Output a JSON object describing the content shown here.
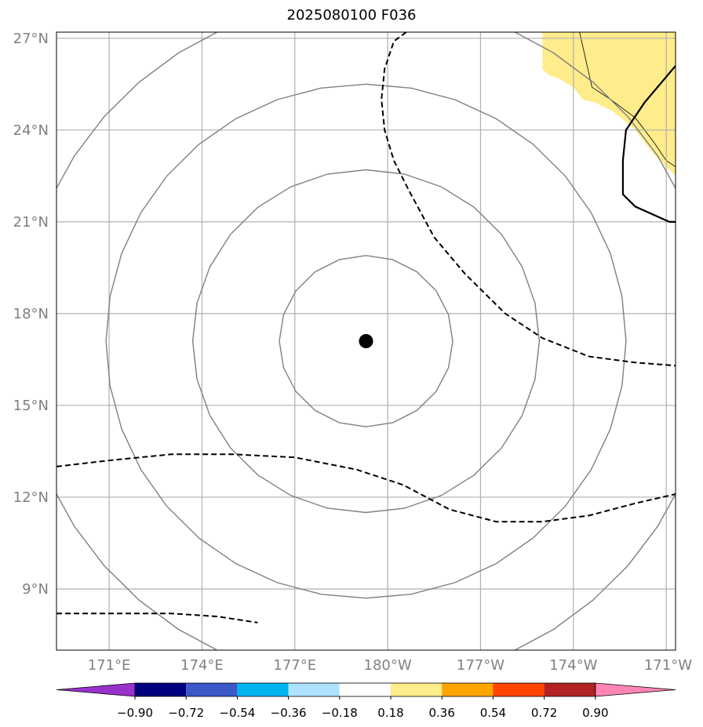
{
  "title": "2025080100 F036",
  "map": {
    "lat_range": [
      7,
      27.2
    ],
    "lon_range_east": [
      169.3,
      189.3
    ],
    "lat_ticks": [
      {
        "value": 27,
        "label": "27°N"
      },
      {
        "value": 24,
        "label": "24°N"
      },
      {
        "value": 21,
        "label": "21°N"
      },
      {
        "value": 18,
        "label": "18°N"
      },
      {
        "value": 15,
        "label": "15°N"
      },
      {
        "value": 12,
        "label": "12°N"
      },
      {
        "value": 9,
        "label": "9°N"
      }
    ],
    "lon_ticks": [
      {
        "value": 171,
        "label": "171°E"
      },
      {
        "value": 174,
        "label": "174°E"
      },
      {
        "value": 177,
        "label": "177°E"
      },
      {
        "value": 180,
        "label": "180°W"
      },
      {
        "value": 183,
        "label": "177°W"
      },
      {
        "value": 186,
        "label": "174°W"
      },
      {
        "value": 189,
        "label": "171°W"
      }
    ],
    "center": {
      "lon": 179.3,
      "lat": 17.1
    },
    "pressure_rings_approx_radius_deg": [
      2.8,
      5.6,
      8.4,
      11.2
    ],
    "dashed_contours": [
      [
        [
          180.6,
          27.2
        ],
        [
          180.2,
          26.9
        ],
        [
          179.9,
          26.0
        ],
        [
          179.8,
          25.0
        ],
        [
          179.9,
          24.0
        ],
        [
          180.2,
          23.0
        ],
        [
          180.7,
          22.0
        ],
        [
          181.5,
          20.5
        ],
        [
          182.5,
          19.3
        ],
        [
          183.8,
          18.0
        ],
        [
          185.0,
          17.2
        ],
        [
          186.5,
          16.6
        ],
        [
          188.0,
          16.4
        ],
        [
          189.3,
          16.3
        ]
      ],
      [
        [
          169.3,
          13.0
        ],
        [
          171.0,
          13.2
        ],
        [
          173.0,
          13.4
        ],
        [
          175.0,
          13.4
        ],
        [
          177.0,
          13.3
        ],
        [
          179.0,
          12.9
        ],
        [
          180.5,
          12.4
        ],
        [
          182.0,
          11.6
        ],
        [
          183.5,
          11.2
        ],
        [
          185.0,
          11.2
        ],
        [
          186.5,
          11.4
        ],
        [
          188.0,
          11.8
        ],
        [
          189.3,
          12.1
        ]
      ],
      [
        [
          169.3,
          8.2
        ],
        [
          171.0,
          8.2
        ],
        [
          173.0,
          8.2
        ],
        [
          174.5,
          8.1
        ],
        [
          175.8,
          7.9
        ]
      ]
    ],
    "solid_bold_contour": [
      [
        189.3,
        26.1
      ],
      [
        188.3,
        24.9
      ],
      [
        187.7,
        24.0
      ],
      [
        187.6,
        23.0
      ],
      [
        187.6,
        21.9
      ],
      [
        188.0,
        21.5
      ],
      [
        189.1,
        21.0
      ],
      [
        189.3,
        21.0
      ]
    ],
    "land": {
      "fill_color": "#FFEC8B",
      "outline": [
        [
          186.2,
          27.2
        ],
        [
          186.6,
          25.4
        ],
        [
          187.2,
          25.0
        ],
        [
          188.0,
          24.4
        ],
        [
          188.6,
          23.6
        ],
        [
          189.0,
          23.0
        ],
        [
          189.3,
          22.8
        ]
      ],
      "polygon": [
        [
          185.0,
          27.2
        ],
        [
          189.3,
          27.2
        ],
        [
          189.3,
          22.5
        ],
        [
          188.6,
          23.2
        ],
        [
          188.0,
          24.0
        ],
        [
          187.3,
          24.6
        ],
        [
          186.7,
          24.9
        ],
        [
          186.3,
          25.0
        ],
        [
          186.0,
          25.4
        ],
        [
          185.5,
          25.7
        ],
        [
          185.2,
          25.8
        ],
        [
          185.0,
          26.0
        ]
      ]
    }
  },
  "colorbar": {
    "colors": [
      "#9932CC",
      "#000080",
      "#3B58C8",
      "#00B4F0",
      "#AEE2FF",
      "#FFFFFF",
      "#FFEC8B",
      "#FFA500",
      "#FF4500",
      "#B22222",
      "#FF86B4"
    ],
    "labels": [
      "−0.90",
      "−0.72",
      "−0.54",
      "−0.36",
      "−0.18",
      "0.18",
      "0.36",
      "0.54",
      "0.72",
      "0.90"
    ]
  }
}
